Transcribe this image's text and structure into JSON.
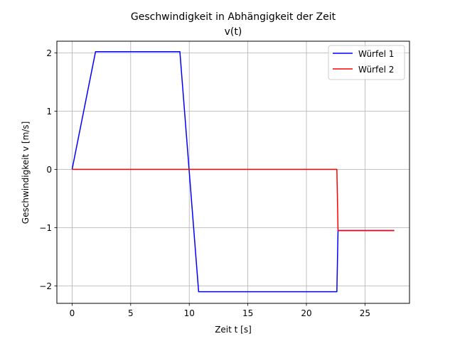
{
  "chart_data": {
    "type": "line",
    "title": "Geschwindigkeit in Abhängigkeit der Zeit",
    "subtitle": "v(t)",
    "xlabel": "Zeit t [s]",
    "ylabel": "Geschwindigkeit v [m/s]",
    "xlim": [
      -1.3,
      28.8
    ],
    "ylim": [
      -2.3,
      2.2
    ],
    "xticks": [
      0,
      5,
      10,
      15,
      20,
      25
    ],
    "yticks": [
      -2,
      -1,
      0,
      1,
      2
    ],
    "xtick_labels": [
      "0",
      "5",
      "10",
      "15",
      "20",
      "25"
    ],
    "ytick_labels": [
      "−2",
      "−1",
      "0",
      "1",
      "2"
    ],
    "grid": true,
    "legend_position": "top-right",
    "series": [
      {
        "name": "Würfel 1",
        "color": "#0000ff",
        "x": [
          0,
          2.0,
          9.2,
          10.8,
          22.6,
          22.7,
          27.5
        ],
        "y": [
          0,
          2.02,
          2.02,
          -2.1,
          -2.1,
          -1.05,
          -1.05
        ]
      },
      {
        "name": "Würfel 2",
        "color": "#ff0000",
        "x": [
          0,
          22.6,
          22.7,
          27.5
        ],
        "y": [
          0,
          0,
          -1.05,
          -1.05
        ]
      }
    ]
  }
}
